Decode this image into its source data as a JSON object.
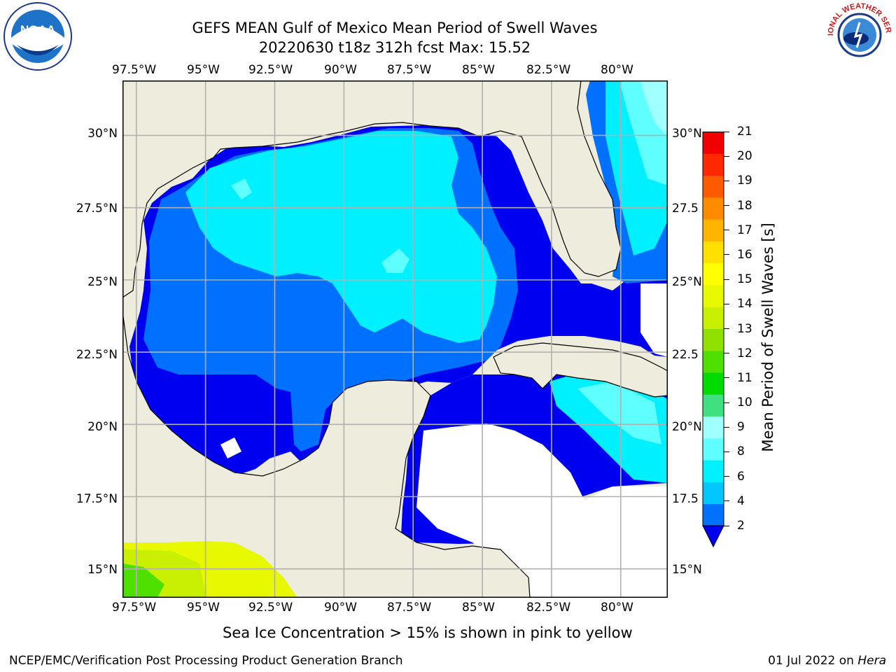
{
  "header": {
    "title_line1": "GEFS MEAN Gulf of Mexico Mean Period of Swell Waves",
    "title_line2": "20220630 t18z 312h fcst   Max: 15.52"
  },
  "logos": {
    "left": {
      "icon": "noaa-logo",
      "text": "NOAA"
    },
    "right": {
      "icon": "national-weather-service-logo",
      "text": "NATIONAL WEATHER SERVICE"
    }
  },
  "map": {
    "lon_labels": [
      "97.5°W",
      "95°W",
      "92.5°W",
      "90°W",
      "87.5°W",
      "85°W",
      "82.5°W",
      "80°W"
    ],
    "lat_labels_left": [
      "30°N",
      "27.5°N",
      "25°N",
      "22.5°N",
      "20°N",
      "17.5°N",
      "15°N"
    ],
    "lat_labels_right": [
      "30°N",
      "27.5",
      "25°N",
      "22.5",
      "20°N",
      "17.5",
      "15°N"
    ],
    "lon_range": [
      -98,
      -78.3
    ],
    "lat_range": [
      14,
      31.9
    ],
    "colors": {
      "land": "#eeecdc",
      "grid": "#b0b0b0",
      "no_data": "#ffffff"
    }
  },
  "colorbar": {
    "label": "Mean Period of Swell Waves [s]",
    "tick_labels": [
      "2",
      "4",
      "6",
      "8",
      "9",
      "10",
      "11",
      "12",
      "13",
      "14",
      "15",
      "16",
      "17",
      "18",
      "19",
      "20",
      "21"
    ],
    "colors": [
      "#0000f0",
      "#0070ff",
      "#00c8ff",
      "#00f0ff",
      "#60ffff",
      "#a0ffff",
      "#40e080",
      "#00dc00",
      "#50e000",
      "#90e000",
      "#c8f000",
      "#e8f800",
      "#ffff00",
      "#ffe000",
      "#ffb400",
      "#ff8c00",
      "#ff5a00",
      "#ff2800",
      "#f00000"
    ],
    "extend": "min"
  },
  "note": "Sea Ice Concentration > 15% is shown in pink to yellow",
  "footer": {
    "left": "NCEP/EMC/Verification Post Processing Product Generation Branch",
    "right_prefix": "01 Jul 2022 on ",
    "right_system": "Hera"
  }
}
